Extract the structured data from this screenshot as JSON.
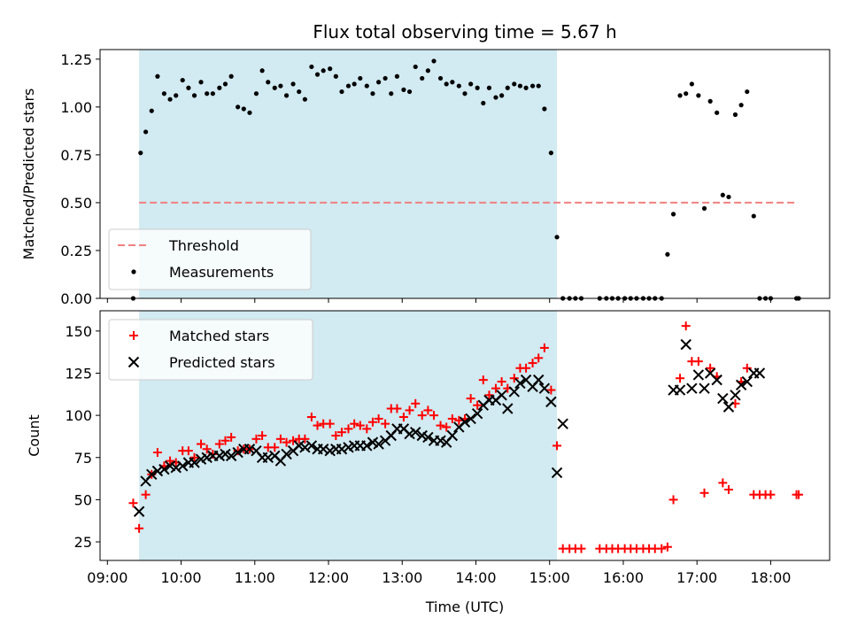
{
  "chart_data": [
    {
      "type": "scatter",
      "title": "Flux total observing time = 5.67 h",
      "ylabel": "Matched/Predicted stars",
      "ylim": [
        0,
        1.3
      ],
      "xlim": [
        8.9,
        18.8
      ],
      "yticks": [
        0,
        0.25,
        0.5,
        0.75,
        1.0,
        1.25
      ],
      "ytick_labels": [
        "0.00",
        "0.25",
        "0.50",
        "0.75",
        "1.00",
        "1.25"
      ],
      "shaded_span": [
        9.43,
        15.1
      ],
      "shade_color": "#add8e6",
      "threshold": {
        "name": "Threshold",
        "value": 0.5,
        "x_start": 9.43,
        "x_end": 18.37,
        "color": "#f08080"
      },
      "legend_position": "lower-left",
      "series": [
        {
          "name": "Measurements",
          "marker": "dot",
          "color": "#000000",
          "x": [
            9.35,
            9.45,
            9.52,
            9.6,
            9.68,
            9.77,
            9.85,
            9.93,
            10.02,
            10.1,
            10.18,
            10.27,
            10.35,
            10.43,
            10.52,
            10.6,
            10.68,
            10.77,
            10.85,
            10.93,
            11.02,
            11.1,
            11.18,
            11.27,
            11.35,
            11.43,
            11.52,
            11.6,
            11.68,
            11.77,
            11.85,
            11.93,
            12.02,
            12.1,
            12.18,
            12.27,
            12.35,
            12.43,
            12.52,
            12.6,
            12.68,
            12.77,
            12.85,
            12.93,
            13.02,
            13.1,
            13.18,
            13.27,
            13.35,
            13.43,
            13.52,
            13.6,
            13.68,
            13.77,
            13.85,
            13.93,
            14.02,
            14.1,
            14.18,
            14.27,
            14.35,
            14.43,
            14.52,
            14.6,
            14.68,
            14.77,
            14.85,
            14.93,
            15.02,
            15.1,
            15.18,
            15.27,
            15.35,
            15.43,
            15.68,
            15.77,
            15.85,
            15.93,
            16.02,
            16.1,
            16.18,
            16.27,
            16.35,
            16.43,
            16.52,
            16.6,
            16.68,
            16.77,
            16.85,
            16.93,
            17.02,
            17.1,
            17.18,
            17.27,
            17.35,
            17.43,
            17.52,
            17.6,
            17.68,
            17.77,
            17.85,
            17.93,
            18.0,
            18.35,
            18.38
          ],
          "y": [
            0.0,
            0.76,
            0.87,
            0.98,
            1.16,
            1.07,
            1.04,
            1.06,
            1.14,
            1.1,
            1.06,
            1.13,
            1.07,
            1.07,
            1.1,
            1.12,
            1.16,
            1.0,
            0.99,
            0.97,
            1.07,
            1.19,
            1.13,
            1.1,
            1.11,
            1.06,
            1.12,
            1.08,
            1.04,
            1.21,
            1.17,
            1.19,
            1.2,
            1.16,
            1.08,
            1.11,
            1.12,
            1.15,
            1.11,
            1.07,
            1.13,
            1.15,
            1.07,
            1.16,
            1.09,
            1.08,
            1.21,
            1.15,
            1.19,
            1.24,
            1.15,
            1.12,
            1.13,
            1.11,
            1.07,
            1.12,
            1.1,
            1.02,
            1.1,
            1.05,
            1.06,
            1.1,
            1.12,
            1.11,
            1.1,
            1.11,
            1.11,
            0.99,
            0.76,
            0.32,
            0.0,
            0.0,
            0.0,
            0.0,
            0.0,
            0.0,
            0.0,
            0.0,
            0.0,
            0.0,
            0.0,
            0.0,
            0.0,
            0.0,
            0.0,
            0.23,
            0.44,
            1.06,
            1.07,
            1.12,
            1.06,
            0.47,
            1.03,
            0.97,
            0.54,
            0.53,
            0.96,
            1.01,
            1.08,
            0.43,
            0.0,
            0.0,
            0.0,
            0.0,
            0.0
          ]
        }
      ]
    },
    {
      "type": "scatter",
      "xlabel": "Time (UTC)",
      "ylabel": "Count",
      "ylim": [
        14,
        162
      ],
      "xlim": [
        8.9,
        18.8
      ],
      "yticks": [
        25,
        50,
        75,
        100,
        125,
        150
      ],
      "ytick_labels": [
        "25",
        "50",
        "75",
        "100",
        "125",
        "150"
      ],
      "xticks": [
        9,
        10,
        11,
        12,
        13,
        14,
        15,
        16,
        17,
        18
      ],
      "xtick_labels": [
        "09:00",
        "10:00",
        "11:00",
        "12:00",
        "13:00",
        "14:00",
        "15:00",
        "16:00",
        "17:00",
        "18:00"
      ],
      "shaded_span": [
        9.43,
        15.1
      ],
      "shade_color": "#add8e6",
      "legend_position": "upper-left",
      "series": [
        {
          "name": "Matched stars",
          "marker": "plus",
          "color": "#ff0000",
          "x": [
            9.35,
            9.43,
            9.52,
            9.6,
            9.68,
            9.77,
            9.85,
            9.93,
            10.02,
            10.1,
            10.18,
            10.27,
            10.35,
            10.43,
            10.52,
            10.6,
            10.68,
            10.77,
            10.85,
            10.93,
            11.02,
            11.1,
            11.18,
            11.27,
            11.35,
            11.43,
            11.52,
            11.6,
            11.68,
            11.77,
            11.85,
            11.93,
            12.02,
            12.1,
            12.18,
            12.27,
            12.35,
            12.43,
            12.52,
            12.6,
            12.68,
            12.77,
            12.85,
            12.93,
            13.02,
            13.1,
            13.18,
            13.27,
            13.35,
            13.43,
            13.52,
            13.6,
            13.68,
            13.77,
            13.85,
            13.93,
            14.02,
            14.1,
            14.18,
            14.27,
            14.35,
            14.43,
            14.52,
            14.6,
            14.68,
            14.77,
            14.85,
            14.93,
            15.02,
            15.1,
            15.18,
            15.27,
            15.35,
            15.43,
            15.68,
            15.77,
            15.85,
            15.93,
            16.02,
            16.1,
            16.18,
            16.27,
            16.35,
            16.43,
            16.52,
            16.6,
            16.68,
            16.77,
            16.85,
            16.93,
            17.02,
            17.1,
            17.18,
            17.27,
            17.35,
            17.43,
            17.52,
            17.6,
            17.68,
            17.77,
            17.85,
            17.93,
            18.0,
            18.35,
            18.38
          ],
          "y": [
            48,
            33,
            53,
            65,
            78,
            70,
            73,
            72,
            79,
            79,
            75,
            83,
            80,
            77,
            83,
            85,
            87,
            79,
            80,
            80,
            86,
            88,
            81,
            81,
            86,
            84,
            85,
            86,
            86,
            99,
            94,
            95,
            95,
            88,
            90,
            92,
            95,
            94,
            92,
            96,
            98,
            95,
            104,
            104,
            99,
            103,
            107,
            100,
            103,
            100,
            94,
            93,
            98,
            97,
            98,
            110,
            106,
            121,
            112,
            116,
            120,
            116,
            122,
            128,
            128,
            131,
            134,
            140,
            115,
            82,
            21,
            21,
            21,
            21,
            21,
            21,
            21,
            21,
            21,
            21,
            21,
            21,
            21,
            21,
            21,
            22,
            50,
            122,
            153,
            132,
            132,
            54,
            128,
            123,
            60,
            56,
            107,
            120,
            128,
            53,
            53,
            53,
            53,
            53,
            53
          ]
        },
        {
          "name": "Predicted stars",
          "marker": "x",
          "color": "#000000",
          "x": [
            9.43,
            9.52,
            9.6,
            9.68,
            9.77,
            9.85,
            9.93,
            10.02,
            10.1,
            10.18,
            10.27,
            10.35,
            10.43,
            10.52,
            10.6,
            10.68,
            10.77,
            10.85,
            10.93,
            11.02,
            11.1,
            11.18,
            11.27,
            11.35,
            11.43,
            11.52,
            11.6,
            11.68,
            11.77,
            11.85,
            11.93,
            12.02,
            12.1,
            12.18,
            12.27,
            12.35,
            12.43,
            12.52,
            12.6,
            12.68,
            12.77,
            12.85,
            12.93,
            13.02,
            13.1,
            13.18,
            13.27,
            13.35,
            13.43,
            13.52,
            13.6,
            13.68,
            13.77,
            13.85,
            13.93,
            14.02,
            14.1,
            14.18,
            14.27,
            14.35,
            14.43,
            14.52,
            14.6,
            14.68,
            14.77,
            14.85,
            14.93,
            15.02,
            15.1,
            15.18,
            16.68,
            16.77,
            16.85,
            16.93,
            17.02,
            17.1,
            17.18,
            17.27,
            17.35,
            17.43,
            17.52,
            17.6,
            17.68,
            17.77,
            17.85
          ],
          "y": [
            43,
            61,
            65,
            67,
            68,
            70,
            69,
            70,
            72,
            72,
            74,
            75,
            76,
            76,
            77,
            76,
            78,
            80,
            80,
            79,
            75,
            75,
            76,
            73,
            77,
            79,
            82,
            81,
            82,
            80,
            80,
            79,
            80,
            80,
            81,
            82,
            82,
            82,
            84,
            83,
            85,
            88,
            92,
            92,
            89,
            90,
            88,
            87,
            85,
            85,
            84,
            88,
            93,
            96,
            98,
            101,
            106,
            109,
            109,
            112,
            104,
            114,
            119,
            121,
            117,
            121,
            116,
            108,
            66,
            95,
            115,
            115,
            142,
            116,
            124,
            116,
            125,
            121,
            110,
            105,
            112,
            118,
            120,
            125,
            125
          ]
        }
      ]
    }
  ]
}
